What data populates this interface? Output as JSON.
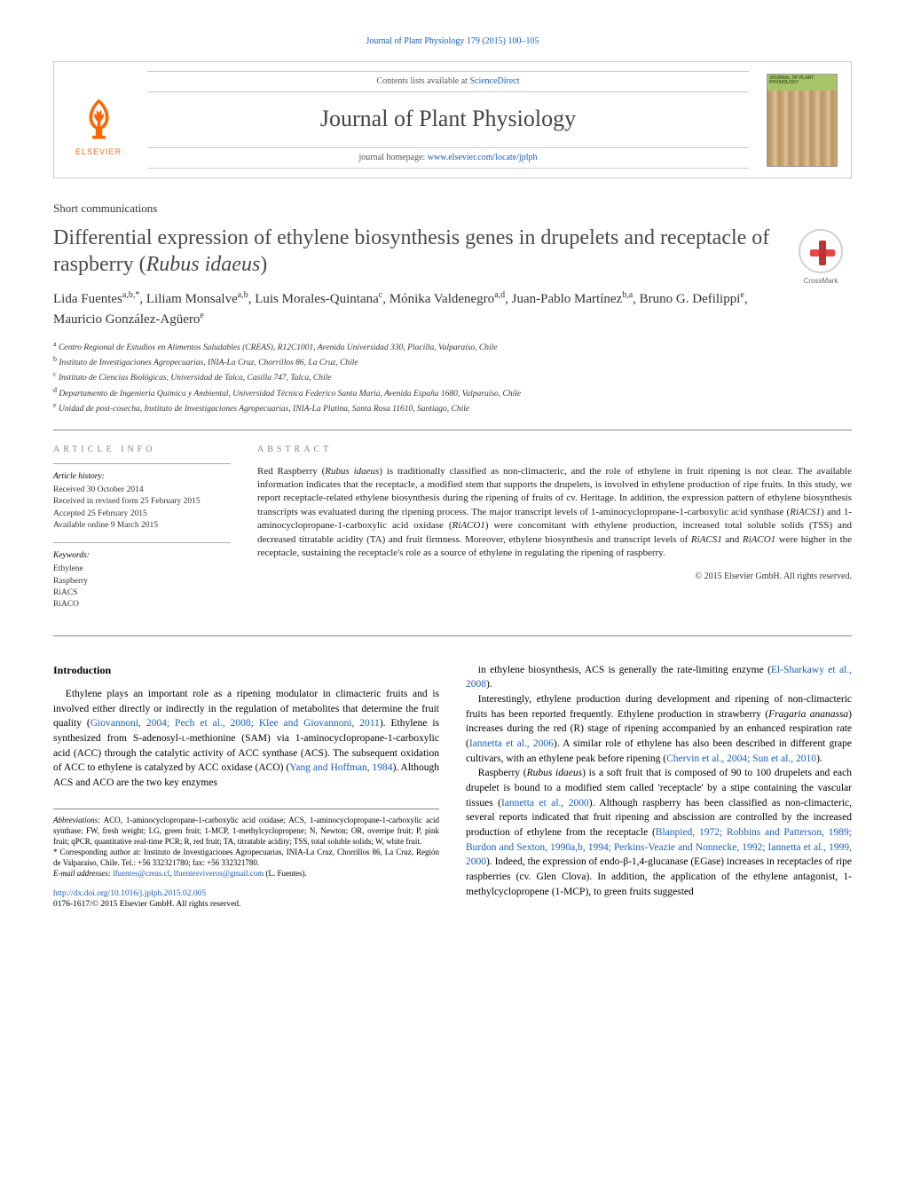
{
  "header": {
    "citation_link": "Journal of Plant Physiology 179 (2015) 100–105",
    "contents_prefix": "Contents lists available at ",
    "contents_link": "ScienceDirect",
    "journal_name": "Journal of Plant Physiology",
    "homepage_prefix": "journal homepage: ",
    "homepage_url": "www.elsevier.com/locate/jplph",
    "publisher": "ELSEVIER",
    "cover_title": "JOURNAL OF PLANT PHYSIOLOGY",
    "crossmark_label": "CrossMark"
  },
  "article": {
    "type": "Short communications",
    "title_plain": "Differential expression of ethylene biosynthesis genes in drupelets and receptacle of raspberry (",
    "title_italic": "Rubus idaeus",
    "title_close": ")",
    "authors_html": "Lida Fuentes<sup>a,b,*</sup>, Liliam Monsalve<sup>a,b</sup>, Luis Morales-Quintana<sup>c</sup>, Mónika Valdenegro<sup>a,d</sup>, Juan-Pablo Martínez<sup>b,a</sup>, Bruno G. Defilippi<sup>e</sup>, Mauricio González-Agüero<sup>e</sup>",
    "affiliations": [
      "a Centro Regional de Estudios en Alimentos Saludables (CREAS), R12C1001, Avenida Universidad 330, Placilla, Valparaíso, Chile",
      "b Instituto de Investigaciones Agropecuarias, INIA-La Cruz, Chorrillos 86, La Cruz, Chile",
      "c Instituto de Ciencias Biológicas, Universidad de Talca, Casilla 747, Talca, Chile",
      "d Departamento de Ingeniería Química y Ambiental, Universidad Técnica Federico Santa María, Avenida España 1680, Valparaíso, Chile",
      "e Unidad de post-cosecha, Instituto de Investigaciones Agropecuarias, INIA-La Platina, Santa Rosa 11610, Santiago, Chile"
    ]
  },
  "info": {
    "heading": "ARTICLE INFO",
    "history_head": "Article history:",
    "history": [
      "Received 30 October 2014",
      "Received in revised form 25 February 2015",
      "Accepted 25 February 2015",
      "Available online 9 March 2015"
    ],
    "keywords_head": "Keywords:",
    "keywords": [
      "Ethylene",
      "Raspberry",
      "RiACS",
      "RiACO"
    ]
  },
  "abstract": {
    "heading": "ABSTRACT",
    "text": "Red Raspberry (Rubus idaeus) is traditionally classified as non-climacteric, and the role of ethylene in fruit ripening is not clear. The available information indicates that the receptacle, a modified stem that supports the drupelets, is involved in ethylene production of ripe fruits. In this study, we report receptacle-related ethylene biosynthesis during the ripening of fruits of cv. Heritage. In addition, the expression pattern of ethylene biosynthesis transcripts was evaluated during the ripening process. The major transcript levels of 1-aminocyclopropane-1-carboxylic acid synthase (RiACS1) and 1-aminocyclopropane-1-carboxylic acid oxidase (RiACO1) were concomitant with ethylene production, increased total soluble solids (TSS) and decreased titratable acidity (TA) and fruit firmness. Moreover, ethylene biosynthesis and transcript levels of RiACS1 and RiACO1 were higher in the receptacle, sustaining the receptacle's role as a source of ethylene in regulating the ripening of raspberry.",
    "copyright": "© 2015 Elsevier GmbH. All rights reserved."
  },
  "body": {
    "section_head": "Introduction",
    "col1": [
      "Ethylene plays an important role as a ripening modulator in climacteric fruits and is involved either directly or indirectly in the regulation of metabolites that determine the fruit quality (Giovannoni, 2004; Pech et al., 2008; Klee and Giovannoni, 2011). Ethylene is synthesized from S-adenosyl-L-methionine (SAM) via 1-aminocyclopropane-1-carboxylic acid (ACC) through the catalytic activity of ACC synthase (ACS). The subsequent oxidation of ACC to ethylene is catalyzed by ACC oxidase (ACO) (Yang and Hoffman, 1984). Although ACS and ACO are the two key enzymes"
    ],
    "col2": [
      "in ethylene biosynthesis, ACS is generally the rate-limiting enzyme (El-Sharkawy et al., 2008).",
      "Interestingly, ethylene production during development and ripening of non-climacteric fruits has been reported frequently. Ethylene production in strawberry (Fragaria ananassa) increases during the red (R) stage of ripening accompanied by an enhanced respiration rate (Iannetta et al., 2006). A similar role of ethylene has also been described in different grape cultivars, with an ethylene peak before ripening (Chervin et al., 2004; Sun et al., 2010).",
      "Raspberry (Rubus idaeus) is a soft fruit that is composed of 90 to 100 drupelets and each drupelet is bound to a modified stem called 'receptacle' by a stipe containing the vascular tissues (Iannetta et al., 2000). Although raspberry has been classified as non-climacteric, several reports indicated that fruit ripening and abscission are controlled by the increased production of ethylene from the receptacle (Blanpied, 1972; Robbins and Patterson, 1989; Burdon and Sexton, 1990a,b, 1994; Perkins-Veazie and Nonnecke, 1992; Iannetta et al., 1999, 2000). Indeed, the expression of endo-β-1,4-glucanase (EGase) increases in receptacles of ripe raspberries (cv. Glen Clova). In addition, the application of the ethylene antagonist, 1-methylcyclopropene (1-MCP), to green fruits suggested"
    ]
  },
  "footnotes": {
    "abbrev_head": "Abbreviations:",
    "abbrev_text": " ACO, 1-aminocyclopropane-1-carboxylic acid oxidase; ACS, 1-aminocyclopropane-1-carboxylic acid synthase; FW, fresh weight; LG, green fruit; 1-MCP, 1-methylcyclopropene; N, Newton; OR, overripe fruit; P, pink fruit; qPCR, quantitative real-time PCR; R, red fruit; TA, titratable acidity; TSS, total soluble solids; W, white fruit.",
    "corr_head": "* Corresponding author at:",
    "corr_text": " Instituto de Investigaciones Agropecuarias, INIA-La Cruz, Chorrillos 86, La Cruz, Región de Valparaíso, Chile. Tel.: +56 332321780; fax: +56 332321780.",
    "email_head": "E-mail addresses:",
    "email1": "lfuentes@creas.cl",
    "email_sep": ", ",
    "email2": "lfuentesviveros@gmail.com",
    "email_tail": " (L. Fuentes)."
  },
  "doi": {
    "url": "http://dx.doi.org/10.1016/j.jplph.2015.02.005",
    "issn_line": "0176-1617/© 2015 Elsevier GmbH. All rights reserved."
  },
  "colors": {
    "link": "#1a5fb4",
    "text": "#000000",
    "heading_gray": "#888888",
    "elsevier_orange": "#ff6600",
    "crossmark_red": "#e84545"
  }
}
